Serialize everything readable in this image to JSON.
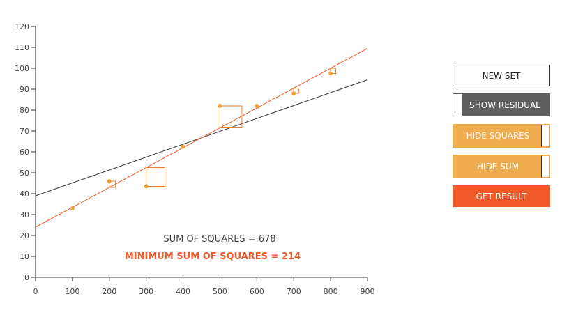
{
  "chart_data": {
    "type": "scatter",
    "title": "",
    "xlabel": "",
    "ylabel": "",
    "xlim": [
      0,
      900
    ],
    "ylim": [
      0,
      120
    ],
    "x_ticks": [
      "0",
      "100",
      "200",
      "300",
      "400",
      "500",
      "600",
      "700",
      "800",
      "900"
    ],
    "y_ticks": [
      "0",
      "10",
      "20",
      "30",
      "40",
      "50",
      "60",
      "70",
      "80",
      "90",
      "100",
      "110",
      "120"
    ],
    "points": [
      {
        "x": 100,
        "y": 33
      },
      {
        "x": 200,
        "y": 46
      },
      {
        "x": 300,
        "y": 43.5
      },
      {
        "x": 400,
        "y": 62.5
      },
      {
        "x": 500,
        "y": 82
      },
      {
        "x": 600,
        "y": 82
      },
      {
        "x": 700,
        "y": 88
      },
      {
        "x": 800,
        "y": 97.5
      }
    ],
    "user_line": {
      "x": [
        0,
        900
      ],
      "y": [
        39,
        94.5
      ],
      "color": "#333333"
    },
    "best_fit_line": {
      "x": [
        0,
        900
      ],
      "y": [
        24,
        109.5
      ],
      "color": "#f05a28"
    },
    "point_color": "#f0a23a",
    "square_color": "#ec7c2c"
  },
  "sum_label": "SUM OF SQUARES = 678",
  "min_sum_label": "MINIMUM SUM OF SQUARES = 214",
  "colors": {
    "sum_text": "#444444",
    "min_sum_text": "#f05a28",
    "accent_orange": "#eeac4e",
    "accent_red": "#f05a28",
    "dark_gray": "#5f5f5f"
  },
  "buttons": {
    "new_set": "NEW SET",
    "show_residual": "SHOW RESIDUAL",
    "hide_squares": "HIDE SQUARES",
    "hide_sum": "HIDE SUM",
    "get_result": "GET RESULT"
  }
}
